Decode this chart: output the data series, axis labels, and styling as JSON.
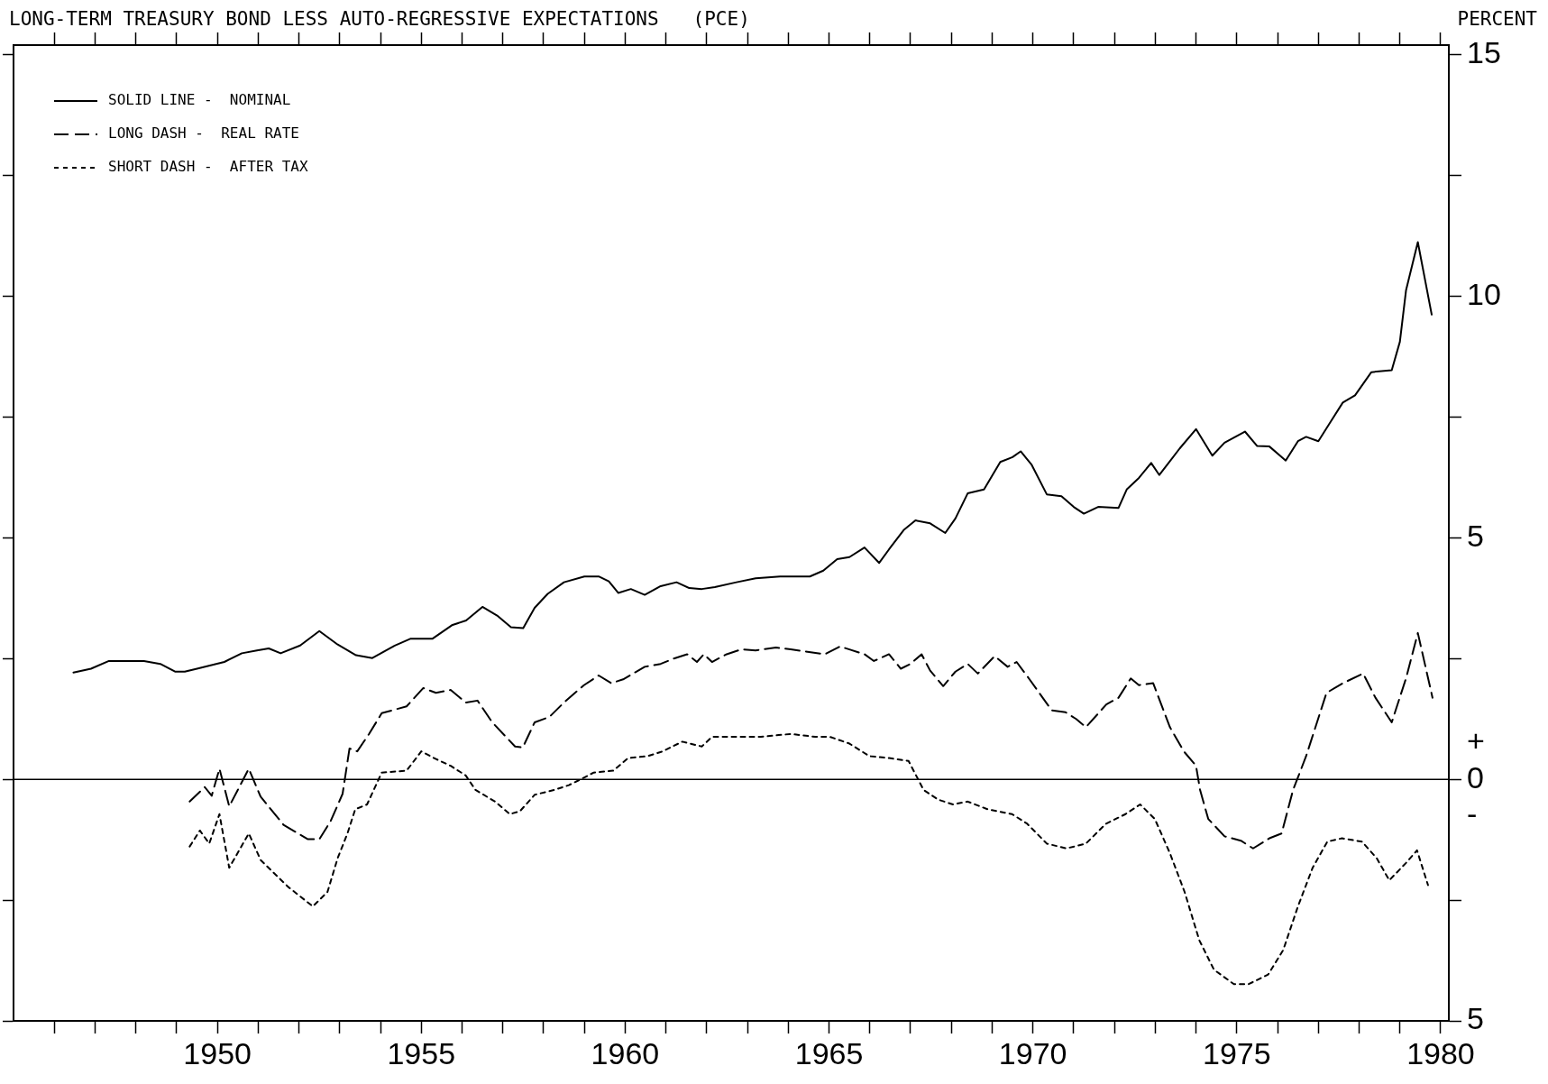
{
  "chart_data": {
    "type": "line",
    "title": "LONG-TERM TREASURY BOND LESS AUTO-REGRESSIVE EXPECTATIONS   (PCE)",
    "ylabel": "PERCENT",
    "xlim": [
      1945,
      1980.2
    ],
    "xticks": [
      {
        "value": 1946,
        "label": null
      },
      {
        "value": 1947,
        "label": null
      },
      {
        "value": 1948,
        "label": null
      },
      {
        "value": 1949,
        "label": null
      },
      1950,
      {
        "value": 1951,
        "label": null
      },
      {
        "value": 1952,
        "label": null
      },
      {
        "value": 1953,
        "label": null
      },
      {
        "value": 1954,
        "label": null
      },
      1955,
      {
        "value": 1956,
        "label": null
      },
      {
        "value": 1957,
        "label": null
      },
      {
        "value": 1958,
        "label": null
      },
      {
        "value": 1959,
        "label": null
      },
      1960,
      {
        "value": 1961,
        "label": null
      },
      {
        "value": 1962,
        "label": null
      },
      {
        "value": 1963,
        "label": null
      },
      {
        "value": 1964,
        "label": null
      },
      1965,
      {
        "value": 1966,
        "label": null
      },
      {
        "value": 1967,
        "label": null
      },
      {
        "value": 1968,
        "label": null
      },
      {
        "value": 1969,
        "label": null
      },
      1970,
      {
        "value": 1971,
        "label": null
      },
      {
        "value": 1972,
        "label": null
      },
      {
        "value": 1973,
        "label": null
      },
      {
        "value": 1974,
        "label": null
      },
      1975,
      {
        "value": 1976,
        "label": null
      },
      {
        "value": 1977,
        "label": null
      },
      {
        "value": 1978,
        "label": null
      },
      {
        "value": 1979,
        "label": null
      },
      1980
    ],
    "ylim": [
      -5,
      15.2
    ],
    "yticks": [
      {
        "value": -5,
        "label": "5"
      },
      {
        "value": -2.5,
        "label": null
      },
      {
        "value": 0,
        "label": "+\n0\n-"
      },
      {
        "value": 2.5,
        "label": null
      },
      5,
      {
        "value": 7.5,
        "label": null
      },
      10,
      {
        "value": 12.5,
        "label": null
      },
      15
    ],
    "ref_lines": [
      {
        "axis": "y",
        "value": 0,
        "color": "#000000",
        "line_style": "solid"
      }
    ],
    "legend": "top left",
    "series": [
      {
        "name": "SOLID LINE -  NOMINAL",
        "color": "#000000",
        "line_style": "solid",
        "x": [
          1946.47,
          1946.9,
          1947.34,
          1947.75,
          1948.2,
          1948.6,
          1948.96,
          1949.2,
          1949.5,
          1950.17,
          1950.6,
          1950.97,
          1951.26,
          1951.55,
          1952.03,
          1952.5,
          1952.95,
          1953.4,
          1953.8,
          1954.35,
          1954.73,
          1955.27,
          1955.75,
          1956.1,
          1956.5,
          1956.86,
          1957.2,
          1957.5,
          1957.78,
          1958.1,
          1958.5,
          1959,
          1959.35,
          1959.6,
          1959.83,
          1960.14,
          1960.48,
          1960.87,
          1961.26,
          1961.57,
          1961.88,
          1962.2,
          1962.73,
          1963.2,
          1963.8,
          1964.53,
          1964.86,
          1965.2,
          1965.5,
          1965.87,
          1966.23,
          1966.47,
          1966.83,
          1967.12,
          1967.48,
          1967.85,
          1968.1,
          1968.4,
          1968.8,
          1969.2,
          1969.5,
          1969.7,
          1969.97,
          1970.34,
          1970.7,
          1971,
          1971.25,
          1971.6,
          1972.1,
          1972.3,
          1972.6,
          1972.9,
          1973.1,
          1973.6,
          1974,
          1974.4,
          1974.7,
          1975.2,
          1975.5,
          1975.8,
          1976.2,
          1976.5,
          1976.7,
          1977,
          1977.3,
          1977.6,
          1977.9,
          1978.3,
          1978.8,
          1979,
          1979.15,
          1979.44,
          1979.78
        ],
        "values": [
          2.21,
          2.29,
          2.45,
          2.45,
          2.45,
          2.39,
          2.23,
          2.23,
          2.29,
          2.43,
          2.61,
          2.67,
          2.71,
          2.61,
          2.77,
          3.07,
          2.79,
          2.57,
          2.51,
          2.77,
          2.91,
          2.91,
          3.19,
          3.29,
          3.57,
          3.39,
          3.15,
          3.13,
          3.55,
          3.84,
          4.08,
          4.2,
          4.2,
          4.1,
          3.86,
          3.94,
          3.82,
          4,
          4.08,
          3.96,
          3.94,
          3.98,
          4.08,
          4.16,
          4.2,
          4.2,
          4.32,
          4.56,
          4.6,
          4.8,
          4.48,
          4.76,
          5.16,
          5.36,
          5.3,
          5.1,
          5.4,
          5.92,
          6,
          6.57,
          6.67,
          6.79,
          6.51,
          5.9,
          5.86,
          5.64,
          5.5,
          5.64,
          5.62,
          6,
          6.24,
          6.55,
          6.3,
          6.85,
          7.25,
          6.7,
          6.97,
          7.2,
          6.9,
          6.89,
          6.6,
          7,
          7.09,
          7,
          7.4,
          7.8,
          7.95,
          8.43,
          8.47,
          9.06,
          10.12,
          11.12,
          9.62
        ]
      },
      {
        "name": "LONG DASH -  REAL RATE",
        "color": "#000000",
        "line_style": "dashed",
        "x": [
          1949.32,
          1949.69,
          1949.86,
          1950.05,
          1950.29,
          1950.77,
          1951.06,
          1951.62,
          1952.22,
          1952.5,
          1952.78,
          1953.07,
          1953.24,
          1953.43,
          1953.72,
          1954.03,
          1954.64,
          1955.05,
          1955.36,
          1955.72,
          1956.09,
          1956.38,
          1956.74,
          1957.3,
          1957.49,
          1957.78,
          1958.14,
          1958.5,
          1958.99,
          1959.35,
          1959.66,
          1959.95,
          1960.48,
          1960.87,
          1961.16,
          1961.52,
          1961.76,
          1961.93,
          1962.13,
          1962.49,
          1962.85,
          1963.2,
          1963.7,
          1964.06,
          1964.4,
          1964.9,
          1965.27,
          1965.5,
          1965.87,
          1966.1,
          1966.47,
          1966.76,
          1967,
          1967.27,
          1967.48,
          1967.8,
          1968.1,
          1968.4,
          1968.65,
          1969.06,
          1969.38,
          1969.6,
          1969.9,
          1970.46,
          1970.8,
          1971.06,
          1971.3,
          1971.8,
          1972.1,
          1972.4,
          1972.6,
          1972.95,
          1973.36,
          1973.7,
          1974,
          1974.1,
          1974.3,
          1974.7,
          1975.1,
          1975.4,
          1975.8,
          1976.1,
          1976.38,
          1976.7,
          1977.2,
          1977.6,
          1978.1,
          1978.4,
          1978.8,
          1979.15,
          1979.44,
          1979.8
        ],
        "values": [
          -0.46,
          -0.16,
          -0.34,
          0.22,
          -0.56,
          0.22,
          -0.36,
          -0.94,
          -1.24,
          -1.24,
          -0.86,
          -0.3,
          0.64,
          0.58,
          0.94,
          1.37,
          1.51,
          1.89,
          1.79,
          1.85,
          1.59,
          1.63,
          1.18,
          0.68,
          0.66,
          1.18,
          1.29,
          1.59,
          1.95,
          2.15,
          1.99,
          2.07,
          2.33,
          2.39,
          2.49,
          2.59,
          2.43,
          2.59,
          2.43,
          2.59,
          2.69,
          2.67,
          2.73,
          2.69,
          2.65,
          2.59,
          2.75,
          2.69,
          2.59,
          2.45,
          2.59,
          2.29,
          2.39,
          2.59,
          2.25,
          1.93,
          2.23,
          2.39,
          2.19,
          2.55,
          2.33,
          2.43,
          2.09,
          1.43,
          1.39,
          1.25,
          1.08,
          1.55,
          1.69,
          2.09,
          1.95,
          1.99,
          1.08,
          0.58,
          0.28,
          -0.22,
          -0.82,
          -1.18,
          -1.27,
          -1.43,
          -1.22,
          -1.12,
          -0.22,
          0.48,
          1.79,
          1.99,
          2.19,
          1.69,
          1.18,
          2.09,
          3.03,
          1.69
        ]
      },
      {
        "name": "SHORT DASH -  AFTER TAX",
        "color": "#000000",
        "line_style": "dotted",
        "x": [
          1949.32,
          1949.57,
          1949.8,
          1950.05,
          1950.29,
          1950.77,
          1951.06,
          1951.74,
          1952.34,
          1952.7,
          1952.95,
          1953.19,
          1953.38,
          1953.67,
          1954.03,
          1954.64,
          1955,
          1955.36,
          1955.72,
          1956.09,
          1956.33,
          1956.81,
          1957.17,
          1957.42,
          1957.78,
          1958.26,
          1958.62,
          1958.86,
          1959.23,
          1959.71,
          1960.07,
          1960.55,
          1960.92,
          1961.4,
          1961.88,
          1962.13,
          1962.85,
          1963.33,
          1964.06,
          1964.66,
          1965.02,
          1965.5,
          1965.99,
          1966.47,
          1966.95,
          1967.32,
          1967.68,
          1968.04,
          1968.4,
          1968.89,
          1969.49,
          1969.86,
          1970.34,
          1970.82,
          1971.3,
          1971.79,
          1972.27,
          1972.63,
          1972.99,
          1973.36,
          1973.72,
          1974.08,
          1974.44,
          1974.93,
          1975.29,
          1975.77,
          1976.14,
          1976.5,
          1976.86,
          1977.22,
          1977.58,
          1978.07,
          1978.43,
          1978.74,
          1979.15,
          1979.42,
          1979.69
        ],
        "values": [
          -1.39,
          -1.06,
          -1.33,
          -0.72,
          -1.83,
          -1.12,
          -1.67,
          -2.23,
          -2.63,
          -2.33,
          -1.63,
          -1.12,
          -0.62,
          -0.52,
          0.14,
          0.18,
          0.58,
          0.42,
          0.28,
          0.08,
          -0.22,
          -0.46,
          -0.72,
          -0.66,
          -0.32,
          -0.22,
          -0.12,
          -0.02,
          0.14,
          0.18,
          0.44,
          0.48,
          0.58,
          0.78,
          0.68,
          0.88,
          0.88,
          0.88,
          0.94,
          0.88,
          0.88,
          0.74,
          0.48,
          0.44,
          0.38,
          -0.22,
          -0.42,
          -0.52,
          -0.46,
          -0.62,
          -0.72,
          -0.92,
          -1.33,
          -1.43,
          -1.33,
          -0.92,
          -0.72,
          -0.52,
          -0.82,
          -1.53,
          -2.33,
          -3.33,
          -3.94,
          -4.24,
          -4.24,
          -4.04,
          -3.53,
          -2.63,
          -1.83,
          -1.29,
          -1.22,
          -1.29,
          -1.63,
          -2.09,
          -1.73,
          -1.47,
          -2.19
        ]
      }
    ]
  }
}
